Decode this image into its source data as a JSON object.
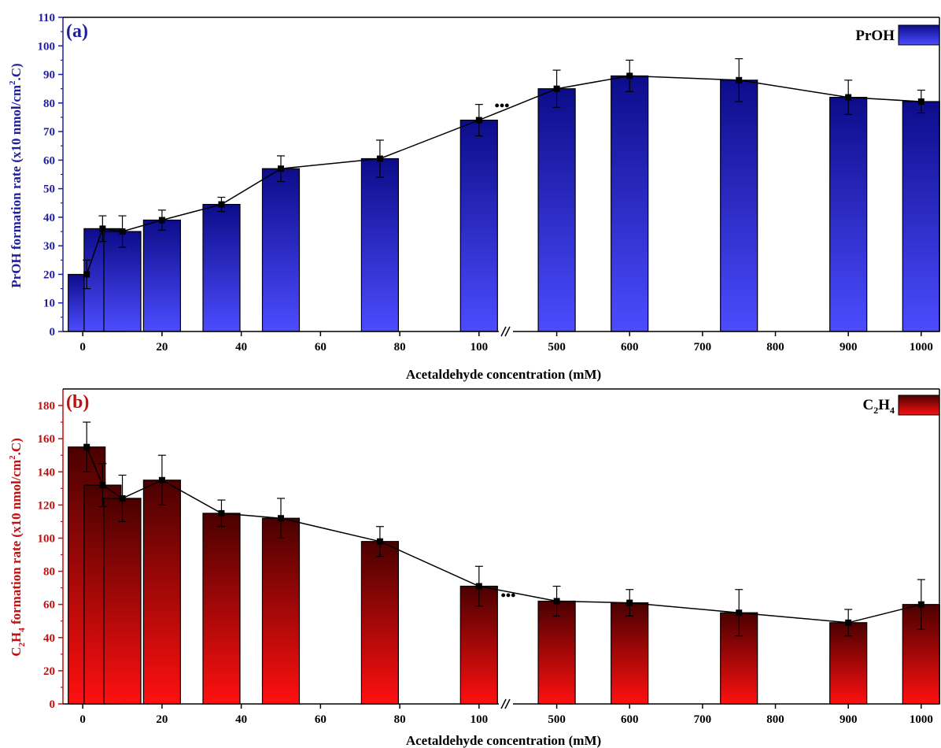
{
  "chart_data": [
    {
      "panel_label": "(a)",
      "type": "bar",
      "ylabel": "PrOH formation rate (x10 nmol/cm².C)",
      "ylabel_parts": {
        "pre": "PrOH formation rate (x10 nmol/cm",
        "sup": "2",
        "post": ".C)"
      },
      "xlabel": "Acetaldehyde concentration (mM)",
      "legend": {
        "label": "PrOH",
        "position": "top-right"
      },
      "ylim": [
        0,
        110
      ],
      "yticks": [
        0,
        10,
        20,
        30,
        40,
        50,
        60,
        70,
        80,
        90,
        100,
        110
      ],
      "axis_break": {
        "between": [
          100,
          500
        ],
        "marker": "•••"
      },
      "xlim_left": [
        -5,
        105
      ],
      "xlim_right": [
        440,
        1025
      ],
      "xticks_left": [
        0,
        20,
        40,
        60,
        80,
        100
      ],
      "xticks_right": [
        500,
        600,
        700,
        800,
        900,
        1000
      ],
      "x": [
        1,
        5,
        10,
        20,
        35,
        50,
        75,
        100,
        500,
        600,
        750,
        900,
        1000
      ],
      "values": [
        20,
        36,
        35,
        39,
        44.5,
        57,
        60.5,
        74,
        85,
        89.5,
        88,
        82,
        80.5
      ],
      "error": [
        5,
        4.5,
        5.5,
        3.5,
        2.5,
        4.5,
        6.5,
        5.5,
        6.5,
        5.5,
        7.5,
        6,
        4
      ],
      "colors": {
        "axis": "#1f1f9e",
        "bar_top": "#0c0c8a",
        "bar_bottom": "#4c4cff",
        "line": "#000000"
      }
    },
    {
      "panel_label": "(b)",
      "type": "bar",
      "ylabel": "C₂H₄ formation rate (x10 nmol/cm².C)",
      "ylabel_parts": {
        "pre": "C",
        "sub1": "2",
        "mid": "H",
        "sub2": "4",
        "post": " formation rate (x10 nmol/cm",
        "sup": "2",
        "end": ".C)"
      },
      "xlabel": "Acetaldehyde concentration (mM)",
      "legend": {
        "label": "C₂H₄",
        "label_parts": {
          "pre": "C",
          "sub1": "2",
          "mid": "H",
          "sub2": "4"
        },
        "position": "top-right"
      },
      "ylim": [
        0,
        190
      ],
      "yticks": [
        0,
        20,
        40,
        60,
        80,
        100,
        120,
        140,
        160,
        180
      ],
      "axis_break": {
        "between": [
          100,
          500
        ],
        "marker": "•••"
      },
      "xlim_left": [
        -5,
        105
      ],
      "xlim_right": [
        440,
        1025
      ],
      "xticks_left": [
        0,
        20,
        40,
        60,
        80,
        100
      ],
      "xticks_right": [
        500,
        600,
        700,
        800,
        900,
        1000
      ],
      "x": [
        1,
        5,
        10,
        20,
        35,
        50,
        75,
        100,
        500,
        600,
        750,
        900,
        1000
      ],
      "values": [
        155,
        132,
        124,
        135,
        115,
        112,
        98,
        71,
        62,
        61,
        55,
        49,
        60
      ],
      "error": [
        15,
        13,
        14,
        15,
        8,
        12,
        9,
        12,
        9,
        8,
        14,
        8,
        15
      ],
      "colors": {
        "axis": "#c01010",
        "bar_top": "#4a0000",
        "bar_bottom": "#ff1010",
        "line": "#000000"
      }
    }
  ]
}
